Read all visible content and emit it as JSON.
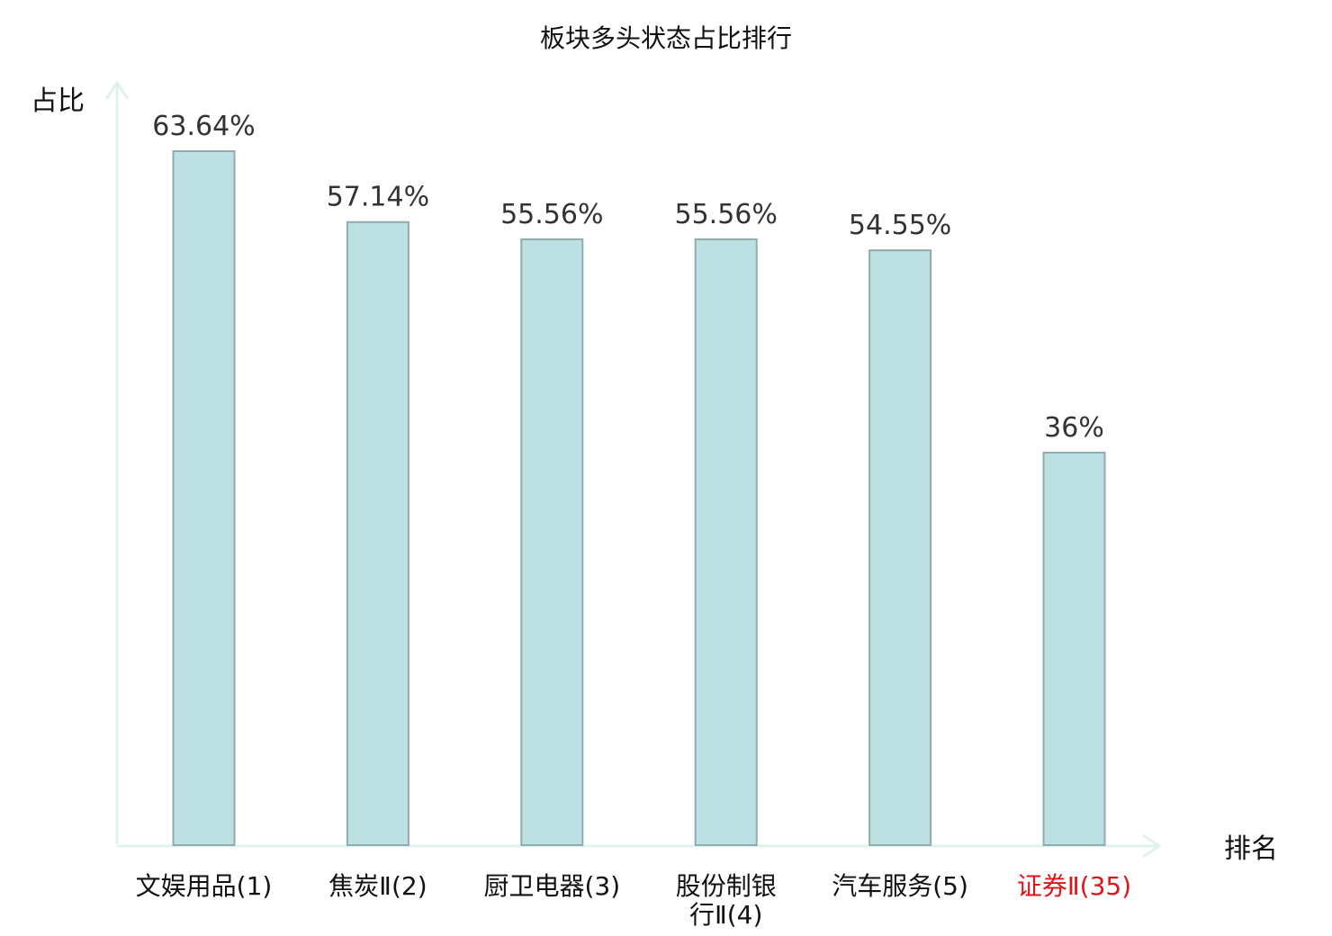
{
  "chart_data": {
    "type": "bar",
    "title": "板块多头状态占比排行",
    "ylabel": "占比",
    "xlabel": "排名",
    "categories": [
      "文娱用品(1)",
      "焦炭Ⅱ(2)",
      "厨卫电器(3)",
      "股份制银行Ⅱ(4)",
      "汽车服务(5)",
      "证券Ⅱ(35)"
    ],
    "values": [
      63.64,
      57.14,
      55.56,
      55.56,
      54.55,
      36
    ],
    "value_labels": [
      "63.64%",
      "57.14%",
      "55.56%",
      "55.56%",
      "54.55%",
      "36%"
    ],
    "category_lines": [
      [
        "文娱用品(1)"
      ],
      [
        "焦炭Ⅱ(2)"
      ],
      [
        "厨卫电器(3)"
      ],
      [
        "股份制银",
        "行Ⅱ(4)"
      ],
      [
        "汽车服务(5)"
      ],
      [
        "证券Ⅱ(35)"
      ]
    ],
    "highlight_index": 5,
    "ylim": [
      0,
      70
    ],
    "grid": false,
    "colors": {
      "bar_fill": "#bde1e3",
      "bar_stroke": "#8eabad",
      "axis": "#dff2ef",
      "label": "#111111",
      "highlight": "#e0121a"
    }
  }
}
